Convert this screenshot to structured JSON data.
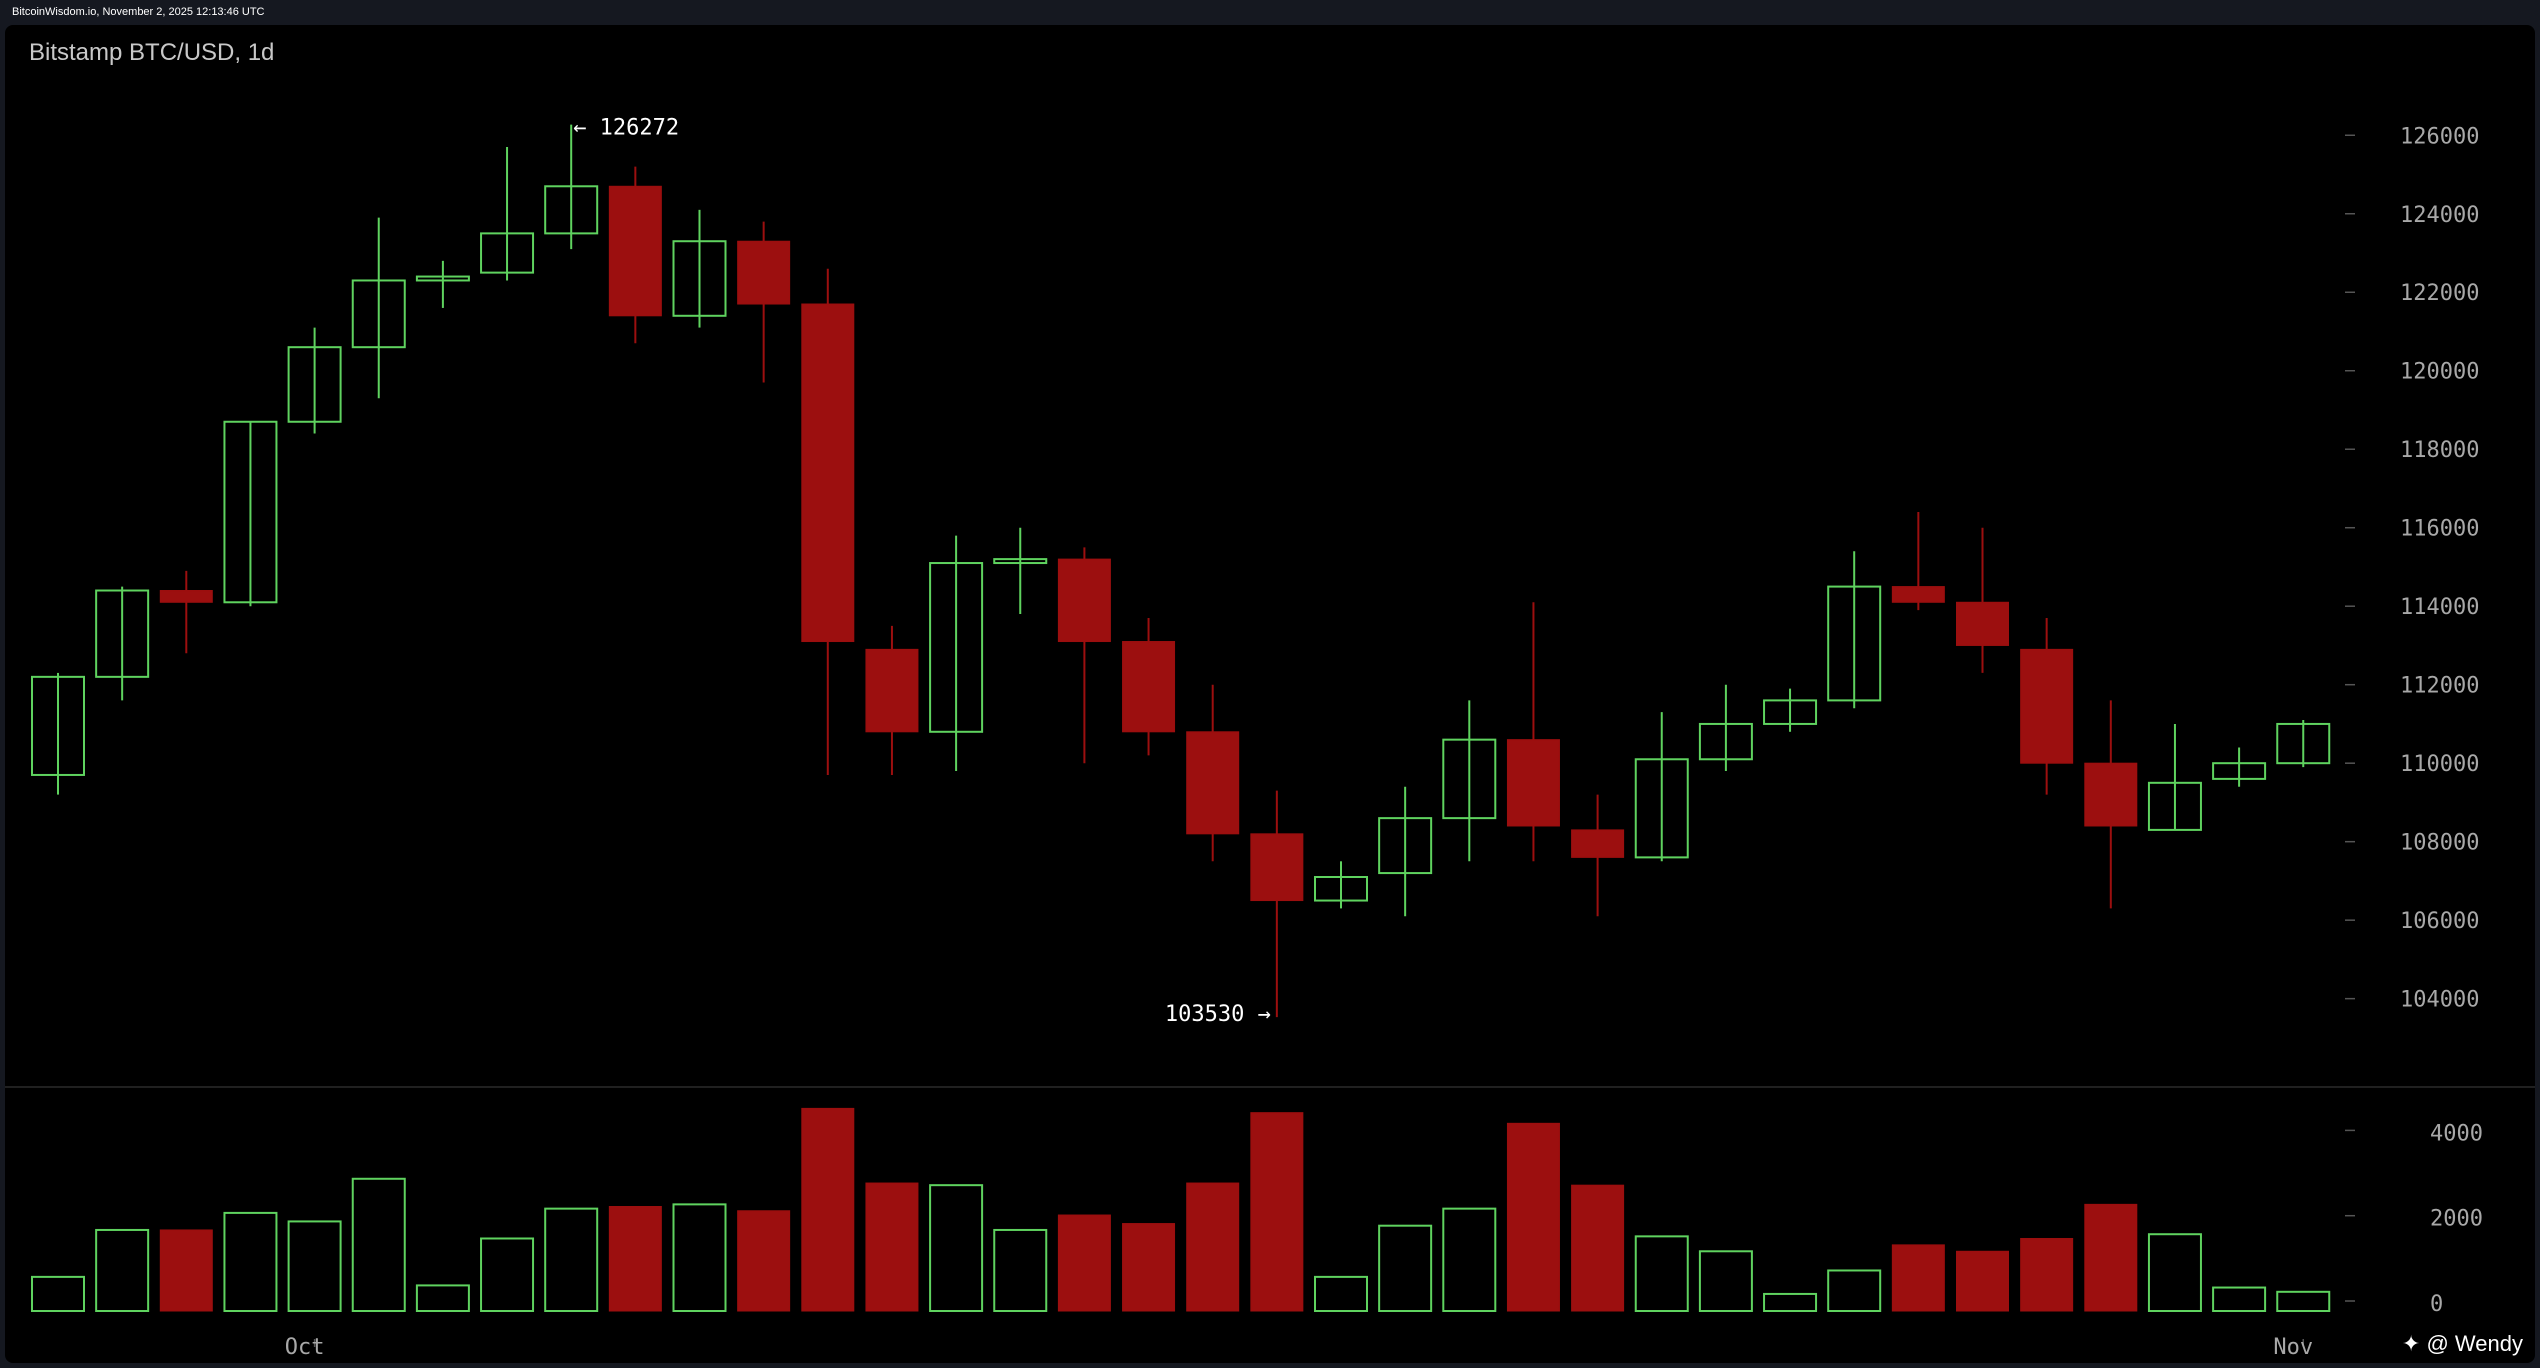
{
  "header": {
    "source": "BitcoinWisdom.io, November 2, 2025 12:13:46 UTC"
  },
  "chart_title": "Bitstamp BTC/USD, 1d",
  "watermark": "✦ @ Wendy",
  "colors": {
    "up": "#5fd35f",
    "down": "#9c0f0f",
    "axis_text": "#a8a8a8",
    "background": "#000000"
  },
  "chart_data": {
    "type": "candlestick",
    "price_axis": {
      "ticks": [
        104000,
        106000,
        108000,
        110000,
        112000,
        114000,
        116000,
        118000,
        120000,
        122000,
        124000,
        126000
      ],
      "range": [
        101800,
        128300
      ]
    },
    "volume_axis": {
      "ticks": [
        0,
        2000,
        4000
      ],
      "range": [
        0,
        4900
      ]
    },
    "x_labels": [
      {
        "index": 4,
        "label": "Oct"
      },
      {
        "index": 35,
        "label": "Nov"
      }
    ],
    "annotations": [
      {
        "index": 8,
        "value": 126272,
        "text": "← 126272",
        "position": "right"
      },
      {
        "index": 19,
        "value": 103530,
        "text": "103530 →",
        "position": "left"
      }
    ],
    "candles": [
      {
        "o": 109700,
        "h": 112300,
        "l": 109200,
        "c": 112200,
        "v": 800
      },
      {
        "o": 112200,
        "h": 114500,
        "l": 111600,
        "c": 114400,
        "v": 1900
      },
      {
        "o": 114400,
        "h": 114900,
        "l": 112800,
        "c": 114100,
        "v": 1900
      },
      {
        "o": 114100,
        "h": 118700,
        "l": 114000,
        "c": 118700,
        "v": 2300
      },
      {
        "o": 118700,
        "h": 121100,
        "l": 118400,
        "c": 120600,
        "v": 2100
      },
      {
        "o": 120600,
        "h": 123900,
        "l": 119300,
        "c": 122300,
        "v": 3100
      },
      {
        "o": 122300,
        "h": 122800,
        "l": 121600,
        "c": 122400,
        "v": 600
      },
      {
        "o": 122500,
        "h": 125700,
        "l": 122300,
        "c": 123500,
        "v": 1700
      },
      {
        "o": 123500,
        "h": 126272,
        "l": 123100,
        "c": 124700,
        "v": 2400
      },
      {
        "o": 124700,
        "h": 125200,
        "l": 120700,
        "c": 121400,
        "v": 2450
      },
      {
        "o": 121400,
        "h": 124100,
        "l": 121100,
        "c": 123300,
        "v": 2500
      },
      {
        "o": 123300,
        "h": 123800,
        "l": 119700,
        "c": 121700,
        "v": 2350
      },
      {
        "o": 121700,
        "h": 122600,
        "l": 109700,
        "c": 113100,
        "v": 4750
      },
      {
        "o": 112900,
        "h": 113500,
        "l": 109700,
        "c": 110800,
        "v": 3000
      },
      {
        "o": 110800,
        "h": 115800,
        "l": 109800,
        "c": 115100,
        "v": 2950
      },
      {
        "o": 115100,
        "h": 116000,
        "l": 113800,
        "c": 115200,
        "v": 1900
      },
      {
        "o": 115200,
        "h": 115500,
        "l": 110000,
        "c": 113100,
        "v": 2250
      },
      {
        "o": 113100,
        "h": 113700,
        "l": 110200,
        "c": 110800,
        "v": 2050
      },
      {
        "o": 110800,
        "h": 112000,
        "l": 107500,
        "c": 108200,
        "v": 3000
      },
      {
        "o": 108200,
        "h": 109300,
        "l": 103530,
        "c": 106500,
        "v": 4650
      },
      {
        "o": 106500,
        "h": 107500,
        "l": 106300,
        "c": 107100,
        "v": 800
      },
      {
        "o": 107200,
        "h": 109400,
        "l": 106100,
        "c": 108600,
        "v": 2000
      },
      {
        "o": 108600,
        "h": 111600,
        "l": 107500,
        "c": 110600,
        "v": 2400
      },
      {
        "o": 110600,
        "h": 114100,
        "l": 107500,
        "c": 108400,
        "v": 4400
      },
      {
        "o": 108300,
        "h": 109200,
        "l": 106100,
        "c": 107600,
        "v": 2950
      },
      {
        "o": 107600,
        "h": 111300,
        "l": 107500,
        "c": 110100,
        "v": 1750
      },
      {
        "o": 110100,
        "h": 112000,
        "l": 109800,
        "c": 111000,
        "v": 1400
      },
      {
        "o": 111000,
        "h": 111900,
        "l": 110800,
        "c": 111600,
        "v": 400
      },
      {
        "o": 111600,
        "h": 115400,
        "l": 111400,
        "c": 114500,
        "v": 950
      },
      {
        "o": 114500,
        "h": 116400,
        "l": 113900,
        "c": 114100,
        "v": 1550
      },
      {
        "o": 114100,
        "h": 116000,
        "l": 112300,
        "c": 113000,
        "v": 1400
      },
      {
        "o": 112900,
        "h": 113700,
        "l": 109200,
        "c": 110000,
        "v": 1700
      },
      {
        "o": 110000,
        "h": 111600,
        "l": 106300,
        "c": 108400,
        "v": 2500
      },
      {
        "o": 108300,
        "h": 111000,
        "l": 108300,
        "c": 109500,
        "v": 1800
      },
      {
        "o": 109600,
        "h": 110400,
        "l": 109400,
        "c": 110000,
        "v": 550
      },
      {
        "o": 110000,
        "h": 111100,
        "l": 109900,
        "c": 111000,
        "v": 450
      }
    ]
  }
}
